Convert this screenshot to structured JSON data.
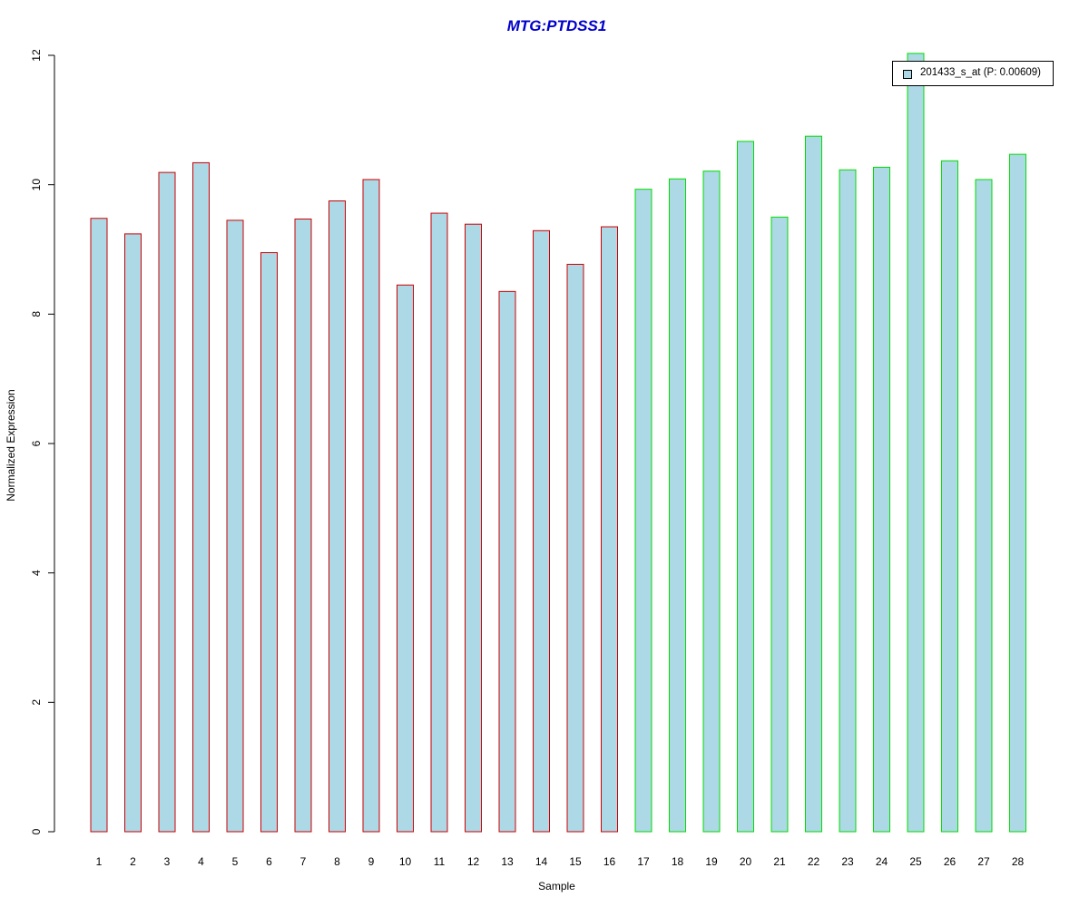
{
  "chart_data": {
    "type": "bar",
    "title": "MTG:PTDSS1",
    "xlabel": "Sample",
    "ylabel": "Normalized Expression",
    "ylim": [
      0,
      12
    ],
    "yticks": [
      0,
      2,
      4,
      6,
      8,
      10,
      12
    ],
    "categories": [
      "1",
      "2",
      "3",
      "4",
      "5",
      "6",
      "7",
      "8",
      "9",
      "10",
      "11",
      "12",
      "13",
      "14",
      "15",
      "16",
      "17",
      "18",
      "19",
      "20",
      "21",
      "22",
      "23",
      "24",
      "25",
      "26",
      "27",
      "28"
    ],
    "series": [
      {
        "name": "201433_s_at (P: 0.00609)",
        "values": [
          9.48,
          9.24,
          10.19,
          10.34,
          9.45,
          8.95,
          9.47,
          9.75,
          10.08,
          8.45,
          9.56,
          9.39,
          8.35,
          9.29,
          8.77,
          9.35,
          9.93,
          10.09,
          10.21,
          10.67,
          9.5,
          10.75,
          10.23,
          10.27,
          12.03,
          10.37,
          10.08,
          10.47
        ]
      }
    ],
    "group_borders": [
      "#cc0000",
      "#cc0000",
      "#cc0000",
      "#cc0000",
      "#cc0000",
      "#cc0000",
      "#cc0000",
      "#cc0000",
      "#cc0000",
      "#cc0000",
      "#cc0000",
      "#cc0000",
      "#cc0000",
      "#cc0000",
      "#cc0000",
      "#cc0000",
      "#00dd00",
      "#00dd00",
      "#00dd00",
      "#00dd00",
      "#00dd00",
      "#00dd00",
      "#00dd00",
      "#00dd00",
      "#00dd00",
      "#00dd00",
      "#00dd00",
      "#00dd00"
    ],
    "bar_fill": "#add8e6",
    "title_color": "#0000cc",
    "grid": false,
    "legend_position": "top-right"
  }
}
